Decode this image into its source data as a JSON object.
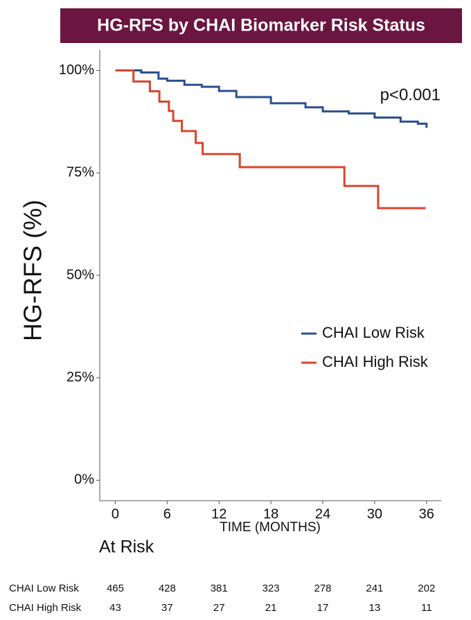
{
  "chart_data": {
    "type": "line",
    "step": true,
    "title": "HG-RFS by CHAI Biomarker Risk Status",
    "x_label": "TIME (MONTHS)",
    "y_label": "HG-RFS (%)",
    "annotation": "p<0.001",
    "xlim": [
      -1.8,
      37.7
    ],
    "xticks": [
      0,
      6,
      12,
      18,
      24,
      30,
      36
    ],
    "ylim": [
      -5,
      105
    ],
    "yticks": [
      {
        "value": 0,
        "label": "0%"
      },
      {
        "value": 25,
        "label": "25%"
      },
      {
        "value": 50,
        "label": "50%"
      },
      {
        "value": 75,
        "label": "75%"
      },
      {
        "value": 100,
        "label": "100%"
      }
    ],
    "grid": false,
    "legend_position": "right",
    "series": [
      {
        "name": "CHAI Low Risk",
        "color": "#2b4f8f",
        "x": [
          0,
          3,
          5,
          6,
          8,
          10,
          12,
          14,
          18,
          22,
          24,
          27,
          30,
          33,
          35,
          36
        ],
        "values": [
          100,
          99.5,
          98,
          97.5,
          96.5,
          96,
          95,
          93.5,
          92,
          91,
          90,
          89.5,
          88.5,
          87.5,
          87,
          86
        ]
      },
      {
        "name": "CHAI High Risk",
        "color": "#d9452c",
        "x": [
          0,
          2.1,
          4,
          5.1,
          6.2,
          6.7,
          7.7,
          9.3,
          10.1,
          14.4,
          26.5,
          30.4,
          35.9
        ],
        "values": [
          100,
          97.3,
          94.9,
          92.4,
          90.1,
          87.7,
          85.2,
          82.3,
          79.6,
          76.4,
          71.8,
          66.4,
          66.4
        ]
      }
    ],
    "risk_table": {
      "title": "At Risk",
      "rows": [
        {
          "name": "CHAI Low Risk",
          "values": [
            465,
            428,
            381,
            323,
            278,
            241,
            202
          ]
        },
        {
          "name": "CHAI High Risk",
          "values": [
            43,
            37,
            27,
            21,
            17,
            13,
            11
          ]
        }
      ]
    }
  }
}
